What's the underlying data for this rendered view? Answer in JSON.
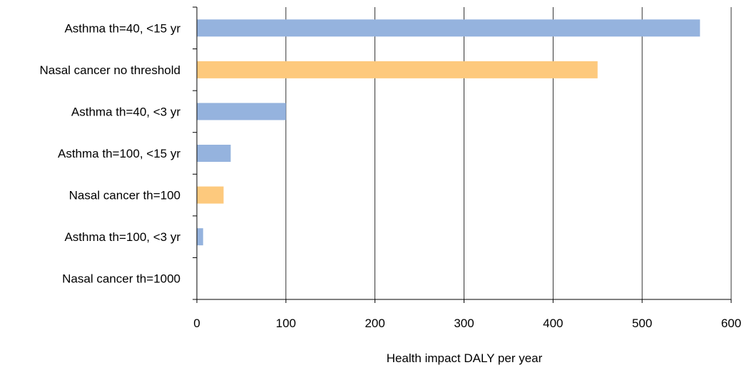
{
  "chart_data": {
    "type": "bar",
    "orientation": "horizontal",
    "title": "",
    "xlabel": "Health impact DALY per year",
    "ylabel": "",
    "xlim": [
      0,
      600
    ],
    "x_ticks": [
      "0",
      "100",
      "200",
      "300",
      "400",
      "500",
      "600"
    ],
    "grid": "vertical",
    "legend": "none",
    "categories": [
      "Asthma th=40, <15 yr",
      "Nasal cancer no threshold",
      "Asthma th=40, <3 yr",
      "Asthma th=100, <15 yr",
      "Nasal cancer th=100",
      "Asthma th=100, <3 yr",
      "Nasal cancer th=1000"
    ],
    "values": [
      565,
      450,
      100,
      38,
      30,
      7,
      0
    ],
    "bar_colors": [
      "#95b3de",
      "#fdc97d",
      "#95b3de",
      "#95b3de",
      "#fdc97d",
      "#95b3de",
      "#95b3de"
    ]
  }
}
